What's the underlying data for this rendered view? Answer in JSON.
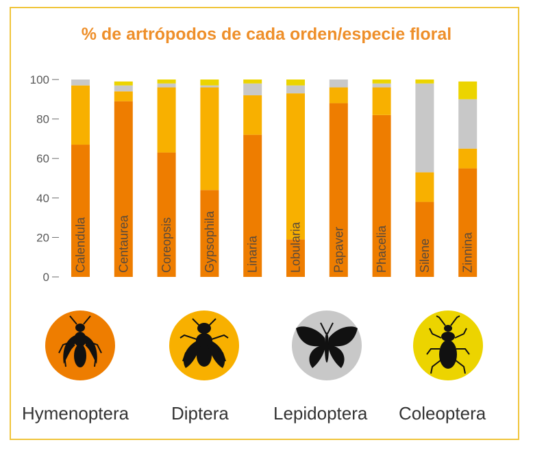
{
  "chart_data": {
    "type": "bar",
    "stacked": true,
    "title": "% de artrópodos de cada orden/especie floral",
    "xlabel": "",
    "ylabel": "",
    "ylim": [
      0,
      100
    ],
    "yticks": [
      0,
      20,
      40,
      60,
      80,
      100
    ],
    "grid": false,
    "legend_position": "bottom",
    "categories": [
      "Calendula",
      "Centaurea",
      "Coreopsis",
      "Gypsophila",
      "Linaria",
      "Lobularia",
      "Papaver",
      "Phacelia",
      "Silene",
      "Zinnina"
    ],
    "series": [
      {
        "name": "Hymenoptera",
        "color": "#ee7d00",
        "icon": "wasp-icon",
        "values": [
          67,
          89,
          63,
          44,
          72,
          19,
          88,
          82,
          38,
          55
        ]
      },
      {
        "name": "Diptera",
        "color": "#f8b000",
        "icon": "fly-icon",
        "values": [
          30,
          5,
          33,
          52,
          20,
          74,
          8,
          14,
          15,
          10
        ]
      },
      {
        "name": "Lepidoptera",
        "color": "#c8c8c8",
        "icon": "butterfly-icon",
        "values": [
          3,
          3,
          2,
          1,
          6,
          4,
          4,
          2,
          45,
          25
        ]
      },
      {
        "name": "Coleoptera",
        "color": "#ecd400",
        "icon": "beetle-icon",
        "values": [
          0,
          2,
          2,
          3,
          2,
          3,
          0,
          2,
          2,
          9
        ]
      }
    ]
  }
}
